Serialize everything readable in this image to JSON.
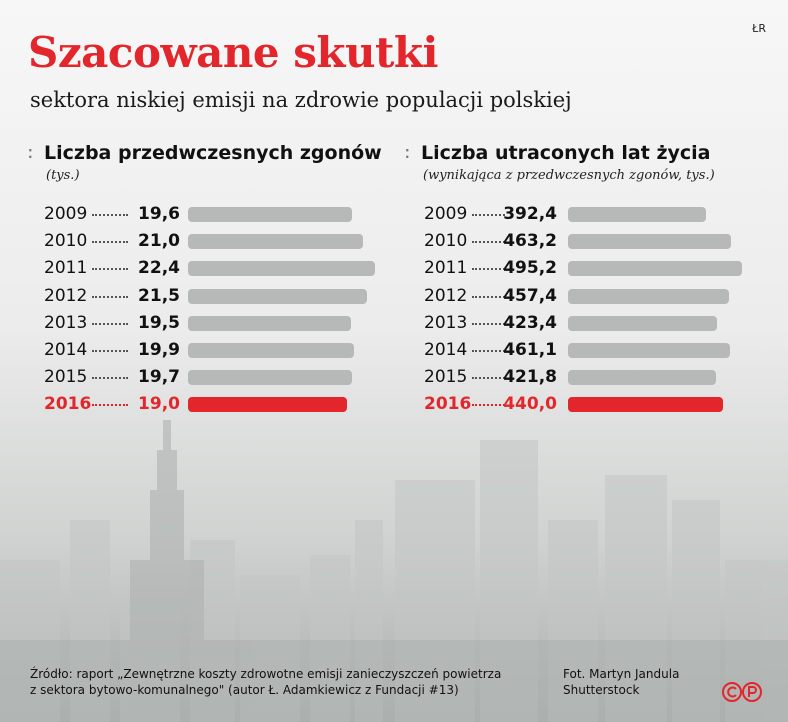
{
  "credit": "ŁR",
  "title": "Szacowane skutki",
  "subtitle": "sektora niskiej emisji na zdrowie populacji polskiej",
  "chart_data": [
    {
      "type": "bar",
      "title": "Liczba przedwczesnych zgonów",
      "subtitle": "(tys.)",
      "categories": [
        "2009",
        "2010",
        "2011",
        "2012",
        "2013",
        "2014",
        "2015",
        "2016"
      ],
      "labels": [
        "19,6",
        "21,0",
        "22,4",
        "21,5",
        "19,5",
        "19,9",
        "19,7",
        "19,0"
      ],
      "values": [
        19.6,
        21.0,
        22.4,
        21.5,
        19.5,
        19.9,
        19.7,
        19.0
      ],
      "highlight_index": 7,
      "orientation": "horizontal",
      "bar_color": "#b7b9b9",
      "highlight_color": "#e3262c"
    },
    {
      "type": "bar",
      "title": "Liczba utraconych lat życia",
      "subtitle": "(wynikająca z przedwczesnych zgonów, tys.)",
      "categories": [
        "2009",
        "2010",
        "2011",
        "2012",
        "2013",
        "2014",
        "2015",
        "2016"
      ],
      "labels": [
        "392,4",
        "463,2",
        "495,2",
        "457,4",
        "423,4",
        "461,1",
        "421,8",
        "440,0"
      ],
      "values": [
        392.4,
        463.2,
        495.2,
        457.4,
        423.4,
        461.1,
        421.8,
        440.0
      ],
      "highlight_index": 7,
      "orientation": "horizontal",
      "bar_color": "#b7b9b9",
      "highlight_color": "#e3262c"
    }
  ],
  "source": {
    "line1": "Źródło: raport „Zewnętrzne koszty zdrowotne emisji zanieczyszczeń powietrza",
    "line2": "z sektora bytowo-komunalnego\" (autor Ł. Adamkiewicz z Fundacji #13)"
  },
  "photo": {
    "line1": "Fot.  Martyn Jandula",
    "line2": "Shutterstock"
  },
  "colors": {
    "accent": "#e3262c",
    "bar": "#b7b9b9",
    "text": "#111111"
  }
}
